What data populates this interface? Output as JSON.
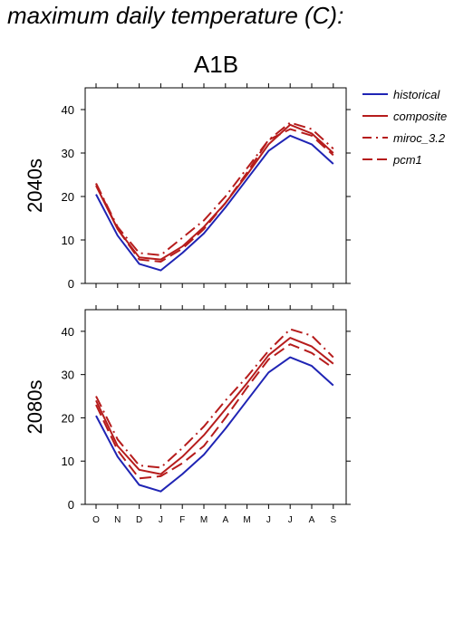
{
  "page": {
    "title": "maximum daily temperature (C):",
    "scenario": "A1B"
  },
  "colors": {
    "historical": "#1f24b4",
    "model": "#b61c1c"
  },
  "legend": [
    {
      "label": "historical",
      "dash": "solid",
      "color": "#1f24b4"
    },
    {
      "label": "composite",
      "dash": "solid",
      "color": "#b61c1c"
    },
    {
      "label": "miroc_3.2",
      "dash": "dashdot",
      "color": "#b61c1c"
    },
    {
      "label": "pcm1",
      "dash": "dash",
      "color": "#b61c1c"
    }
  ],
  "chart_data": [
    {
      "type": "line",
      "panel_label": "2040s",
      "categories": [
        "O",
        "N",
        "D",
        "J",
        "F",
        "M",
        "A",
        "M",
        "J",
        "J",
        "A",
        "S"
      ],
      "ylim": [
        0,
        45
      ],
      "yticks": [
        0,
        10,
        20,
        30,
        40
      ],
      "series": [
        {
          "name": "historical",
          "color": "#1f24b4",
          "dash": "solid",
          "values": [
            20.5,
            11,
            4.5,
            3,
            7,
            11.5,
            17.5,
            24,
            30.5,
            34,
            32,
            27.5
          ]
        },
        {
          "name": "composite",
          "color": "#b61c1c",
          "dash": "solid",
          "values": [
            22.5,
            12.5,
            6,
            5.5,
            8.5,
            13,
            18.5,
            25,
            32,
            36.5,
            34.5,
            30
          ]
        },
        {
          "name": "miroc_3.2",
          "color": "#b61c1c",
          "dash": "dashdot",
          "values": [
            23,
            13,
            7,
            6.5,
            10.5,
            14.5,
            20,
            26.5,
            33,
            37,
            35.5,
            31
          ]
        },
        {
          "name": "pcm1",
          "color": "#b61c1c",
          "dash": "dash",
          "values": [
            23,
            12.5,
            5.5,
            5,
            8,
            12.5,
            18.5,
            25.5,
            33,
            35.5,
            34,
            29.5
          ]
        }
      ]
    },
    {
      "type": "line",
      "panel_label": "2080s",
      "categories": [
        "O",
        "N",
        "D",
        "J",
        "F",
        "M",
        "A",
        "M",
        "J",
        "J",
        "A",
        "S"
      ],
      "ylim": [
        0,
        45
      ],
      "yticks": [
        0,
        10,
        20,
        30,
        40
      ],
      "series": [
        {
          "name": "historical",
          "color": "#1f24b4",
          "dash": "solid",
          "values": [
            20.5,
            11,
            4.5,
            3,
            7,
            11.5,
            17.5,
            24,
            30.5,
            34,
            32,
            27.5
          ]
        },
        {
          "name": "composite",
          "color": "#b61c1c",
          "dash": "solid",
          "values": [
            24,
            13.5,
            8,
            7,
            11,
            16,
            22,
            28,
            34.5,
            38.5,
            36.5,
            32.5
          ]
        },
        {
          "name": "miroc_3.2",
          "color": "#b61c1c",
          "dash": "dashdot",
          "values": [
            25,
            15,
            9,
            8.5,
            13,
            18,
            24,
            29.5,
            35.5,
            40.5,
            39,
            34
          ]
        },
        {
          "name": "pcm1",
          "color": "#b61c1c",
          "dash": "dash",
          "values": [
            23,
            12.5,
            6,
            6.5,
            9.5,
            13.5,
            20,
            27,
            33.5,
            37,
            35,
            31.5
          ]
        }
      ]
    }
  ]
}
